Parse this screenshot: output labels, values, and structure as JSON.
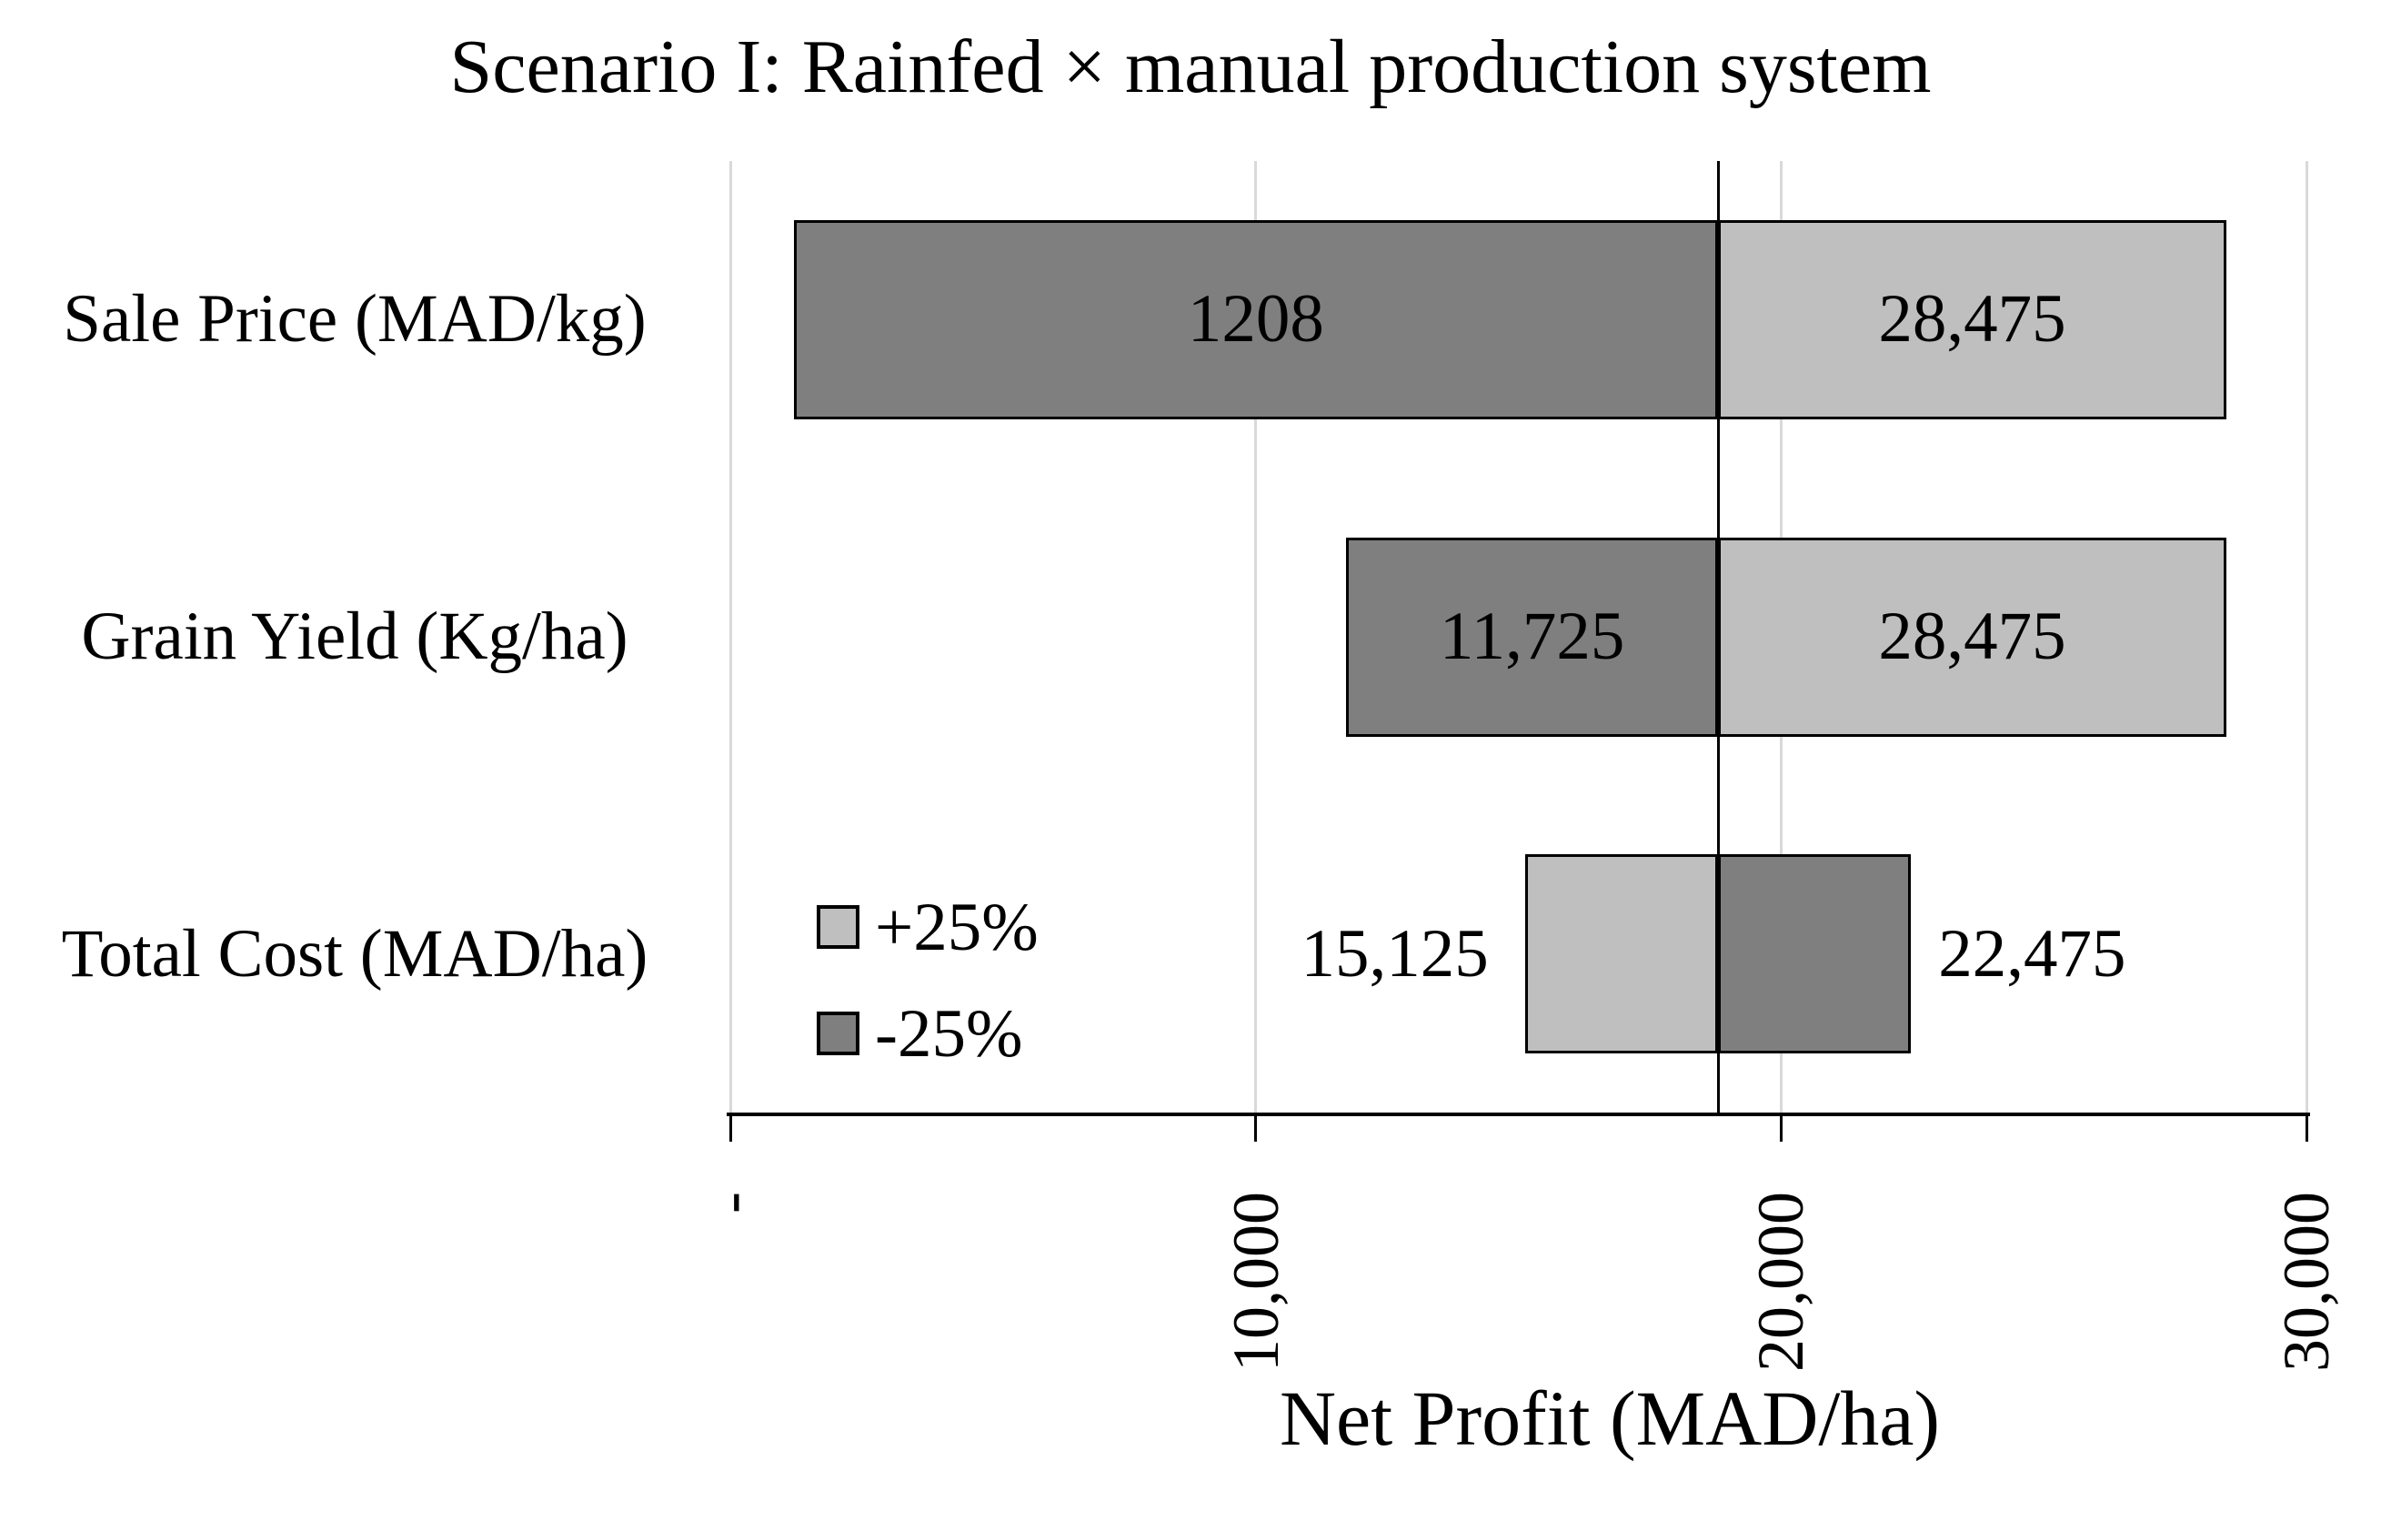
{
  "chart_data": {
    "type": "bar",
    "variant": "tornado-sensitivity-horizontal",
    "title": "Scenario I: Rainfed × manual production system",
    "xlabel": "Net Profit (MAD/ha)",
    "categories": [
      "Sale Price (MAD/kg)",
      "Grain Yield (Kg/ha)",
      "Total Cost (MAD/ha)"
    ],
    "base_value": 18800,
    "axis": {
      "min": 0,
      "max": 30000,
      "grid": true,
      "tick_label_rotation_deg": -90,
      "ticks": [
        {
          "value": 0,
          "label": "-"
        },
        {
          "value": 10000,
          "label": "10,000"
        },
        {
          "value": 20000,
          "label": "20,000"
        },
        {
          "value": 30000,
          "label": "30,000"
        }
      ]
    },
    "series": [
      {
        "name": "+25%",
        "color": "#BFBFBF",
        "net_profit": [
          28475,
          28475,
          15125
        ]
      },
      {
        "name": "-25%",
        "color": "#7F7F7F",
        "net_profit": [
          1208,
          11725,
          22475
        ]
      }
    ],
    "rows": [
      {
        "category": "Sale Price (MAD/kg)",
        "segments": [
          {
            "series": "-25%",
            "from": 1208,
            "to": 18800,
            "label": "1208",
            "label_placement": "inside"
          },
          {
            "series": "+25%",
            "from": 18800,
            "to": 28475,
            "label": "28,475",
            "label_placement": "inside"
          }
        ]
      },
      {
        "category": "Grain Yield (Kg/ha)",
        "segments": [
          {
            "series": "-25%",
            "from": 11725,
            "to": 18800,
            "label": "11,725",
            "label_placement": "inside"
          },
          {
            "series": "+25%",
            "from": 18800,
            "to": 28475,
            "label": "28,475",
            "label_placement": "inside"
          }
        ]
      },
      {
        "category": "Total Cost (MAD/ha)",
        "segments": [
          {
            "series": "+25%",
            "from": 15125,
            "to": 18800,
            "label": "15,125",
            "label_placement": "outside-left"
          },
          {
            "series": "-25%",
            "from": 18800,
            "to": 22475,
            "label": "22,475",
            "label_placement": "outside-right"
          }
        ]
      }
    ],
    "legend": {
      "position": "inside-plot-lower-left",
      "items": [
        {
          "label": "+25%",
          "color": "#BFBFBF"
        },
        {
          "label": "-25%",
          "color": "#7F7F7F"
        }
      ]
    },
    "colors": {
      "gridline": "#D9D9D9",
      "axis_line": "#000000",
      "base_value_line": "#000000",
      "bar_border": "#000000",
      "background": "#FFFFFF",
      "text": "#000000"
    }
  }
}
